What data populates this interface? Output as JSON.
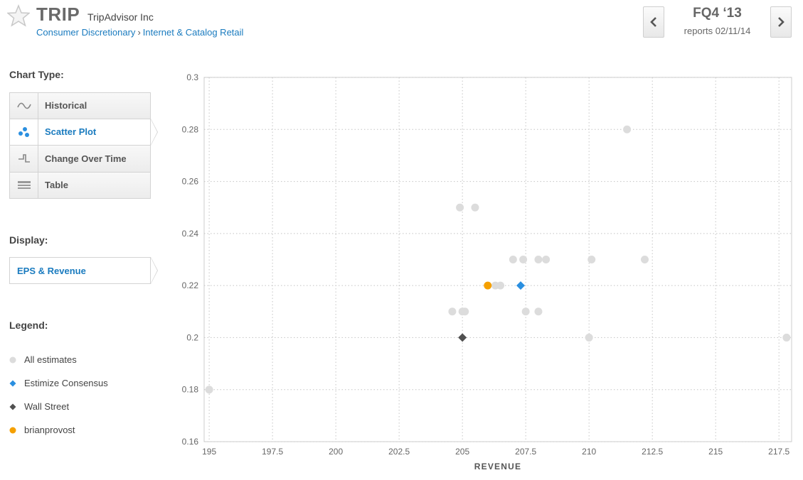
{
  "header": {
    "ticker": "TRIP",
    "company": "TripAdvisor Inc",
    "breadcrumb": [
      "Consumer Discretionary",
      "Internet & Catalog Retail"
    ],
    "breadcrumb_sep": "›",
    "quarter": "FQ4 ‘13",
    "reports": "reports 02/11/14"
  },
  "sidebar": {
    "chart_type_label": "Chart Type:",
    "chart_types": [
      {
        "label": "Historical",
        "icon": "wave-icon",
        "active": false
      },
      {
        "label": "Scatter Plot",
        "icon": "scatter-icon",
        "active": true
      },
      {
        "label": "Change Over Time",
        "icon": "step-icon",
        "active": false
      },
      {
        "label": "Table",
        "icon": "table-icon",
        "active": false
      }
    ],
    "display_label": "Display:",
    "display_value": "EPS & Revenue",
    "legend_label": "Legend:",
    "legend": [
      {
        "label": "All estimates",
        "marker": "circle",
        "color": "#dcdcdc"
      },
      {
        "label": "Estimize Consensus",
        "marker": "diamond",
        "color": "#2a8fe0"
      },
      {
        "label": "Wall Street",
        "marker": "diamond",
        "color": "#505050"
      },
      {
        "label": "brianprovost",
        "marker": "circle",
        "color": "#f5a000"
      }
    ]
  },
  "chart_data": {
    "type": "scatter",
    "xlabel": "REVENUE",
    "ylabel": "",
    "xlim": [
      194.8,
      218
    ],
    "ylim": [
      0.16,
      0.3
    ],
    "xticks": [
      195,
      197.5,
      200,
      202.5,
      205,
      207.5,
      210,
      212.5,
      215,
      217.5
    ],
    "yticks": [
      0.16,
      0.18,
      0.2,
      0.22,
      0.24,
      0.26,
      0.28,
      0.3
    ],
    "grid": true,
    "series": [
      {
        "name": "All estimates",
        "marker": "circle",
        "color": "#dcdcdc",
        "points": [
          [
            195,
            0.18
          ],
          [
            204.9,
            0.25
          ],
          [
            205.5,
            0.25
          ],
          [
            211.5,
            0.28
          ],
          [
            207,
            0.23
          ],
          [
            207.4,
            0.23
          ],
          [
            208,
            0.23
          ],
          [
            208.3,
            0.23
          ],
          [
            210.1,
            0.23
          ],
          [
            212.2,
            0.23
          ],
          [
            206.3,
            0.22
          ],
          [
            206.5,
            0.22
          ],
          [
            204.6,
            0.21
          ],
          [
            205,
            0.21
          ],
          [
            205.1,
            0.21
          ],
          [
            207.5,
            0.21
          ],
          [
            208,
            0.21
          ],
          [
            210,
            0.2
          ],
          [
            217.8,
            0.2
          ]
        ]
      },
      {
        "name": "Estimize Consensus",
        "marker": "diamond",
        "color": "#2a8fe0",
        "points": [
          [
            207.3,
            0.22
          ]
        ]
      },
      {
        "name": "Wall Street",
        "marker": "diamond",
        "color": "#505050",
        "points": [
          [
            205,
            0.2
          ]
        ]
      },
      {
        "name": "brianprovost",
        "marker": "circle",
        "color": "#f5a000",
        "points": [
          [
            206,
            0.22
          ]
        ]
      }
    ]
  }
}
